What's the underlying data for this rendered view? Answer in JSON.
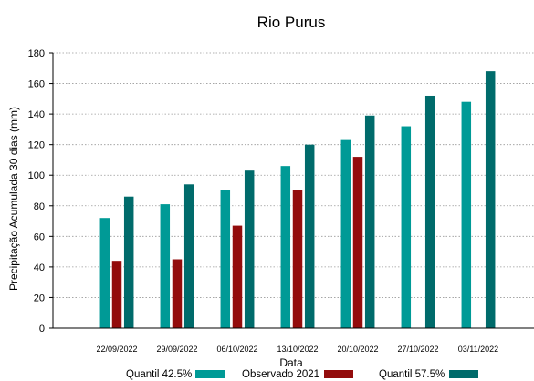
{
  "chart_data": {
    "type": "bar",
    "title": "Rio Purus",
    "xlabel": "Data",
    "ylabel": "Precipitação Acumulada 30 dias (mm)",
    "ylim": [
      0,
      180
    ],
    "yticks": [
      0,
      20,
      40,
      60,
      80,
      100,
      120,
      140,
      160,
      180
    ],
    "grid": "horizontal dotted",
    "legend_position": "bottom",
    "categories": [
      "22/09/2022",
      "29/09/2022",
      "06/10/2022",
      "13/10/2022",
      "20/10/2022",
      "27/10/2022",
      "03/11/2022"
    ],
    "series": [
      {
        "name": "Quantil 42.5%",
        "color": "#009a96",
        "values": [
          72,
          81,
          90,
          106,
          123,
          132,
          148
        ]
      },
      {
        "name": "Observado 2021",
        "color": "#930c0c",
        "values": [
          44,
          45,
          67,
          90,
          112,
          null,
          null
        ]
      },
      {
        "name": "Quantil 57.5%",
        "color": "#006b6b",
        "values": [
          86,
          94,
          103,
          120,
          139,
          152,
          168
        ]
      }
    ]
  }
}
